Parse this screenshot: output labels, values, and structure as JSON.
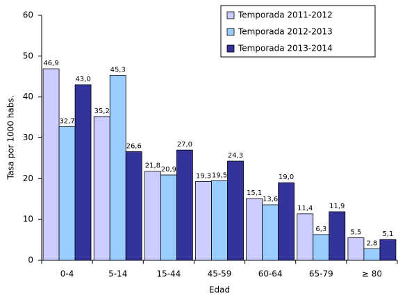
{
  "chart_data": {
    "type": "bar",
    "x_label": "Edad",
    "y_label": "Tasa por 1000 habs.",
    "categories": [
      "0-4",
      "5-14",
      "15-44",
      "45-59",
      "60-64",
      "65-79",
      "≥ 80"
    ],
    "series": [
      {
        "name": "Temporada 2011-2012",
        "color": "#ccccff",
        "values": [
          46.9,
          35.2,
          21.8,
          19.3,
          15.1,
          11.4,
          5.5
        ],
        "value_labels": [
          "46,9",
          "35,2",
          "21,8",
          "19,3",
          "15,1",
          "11,4",
          "5,5"
        ]
      },
      {
        "name": "Temporada 2012-2013",
        "color": "#99ccff",
        "values": [
          32.7,
          45.3,
          20.9,
          19.5,
          13.6,
          6.3,
          2.8
        ],
        "value_labels": [
          "32,7",
          "45,3",
          "20,9",
          "19,5",
          "13,6",
          "6,3",
          "2,8"
        ]
      },
      {
        "name": "Temporada 2013-2014",
        "color": "#333399",
        "values": [
          43.0,
          26.6,
          27.0,
          24.3,
          19.0,
          11.9,
          5.1
        ],
        "value_labels": [
          "43,0",
          "26,6",
          "27,0",
          "24,3",
          "19,0",
          "11,9",
          "5,1"
        ]
      }
    ],
    "ylim": [
      0,
      60
    ],
    "yticks": [
      0,
      10,
      20,
      30,
      40,
      50,
      60
    ],
    "grid": false,
    "legend": "top-right"
  }
}
